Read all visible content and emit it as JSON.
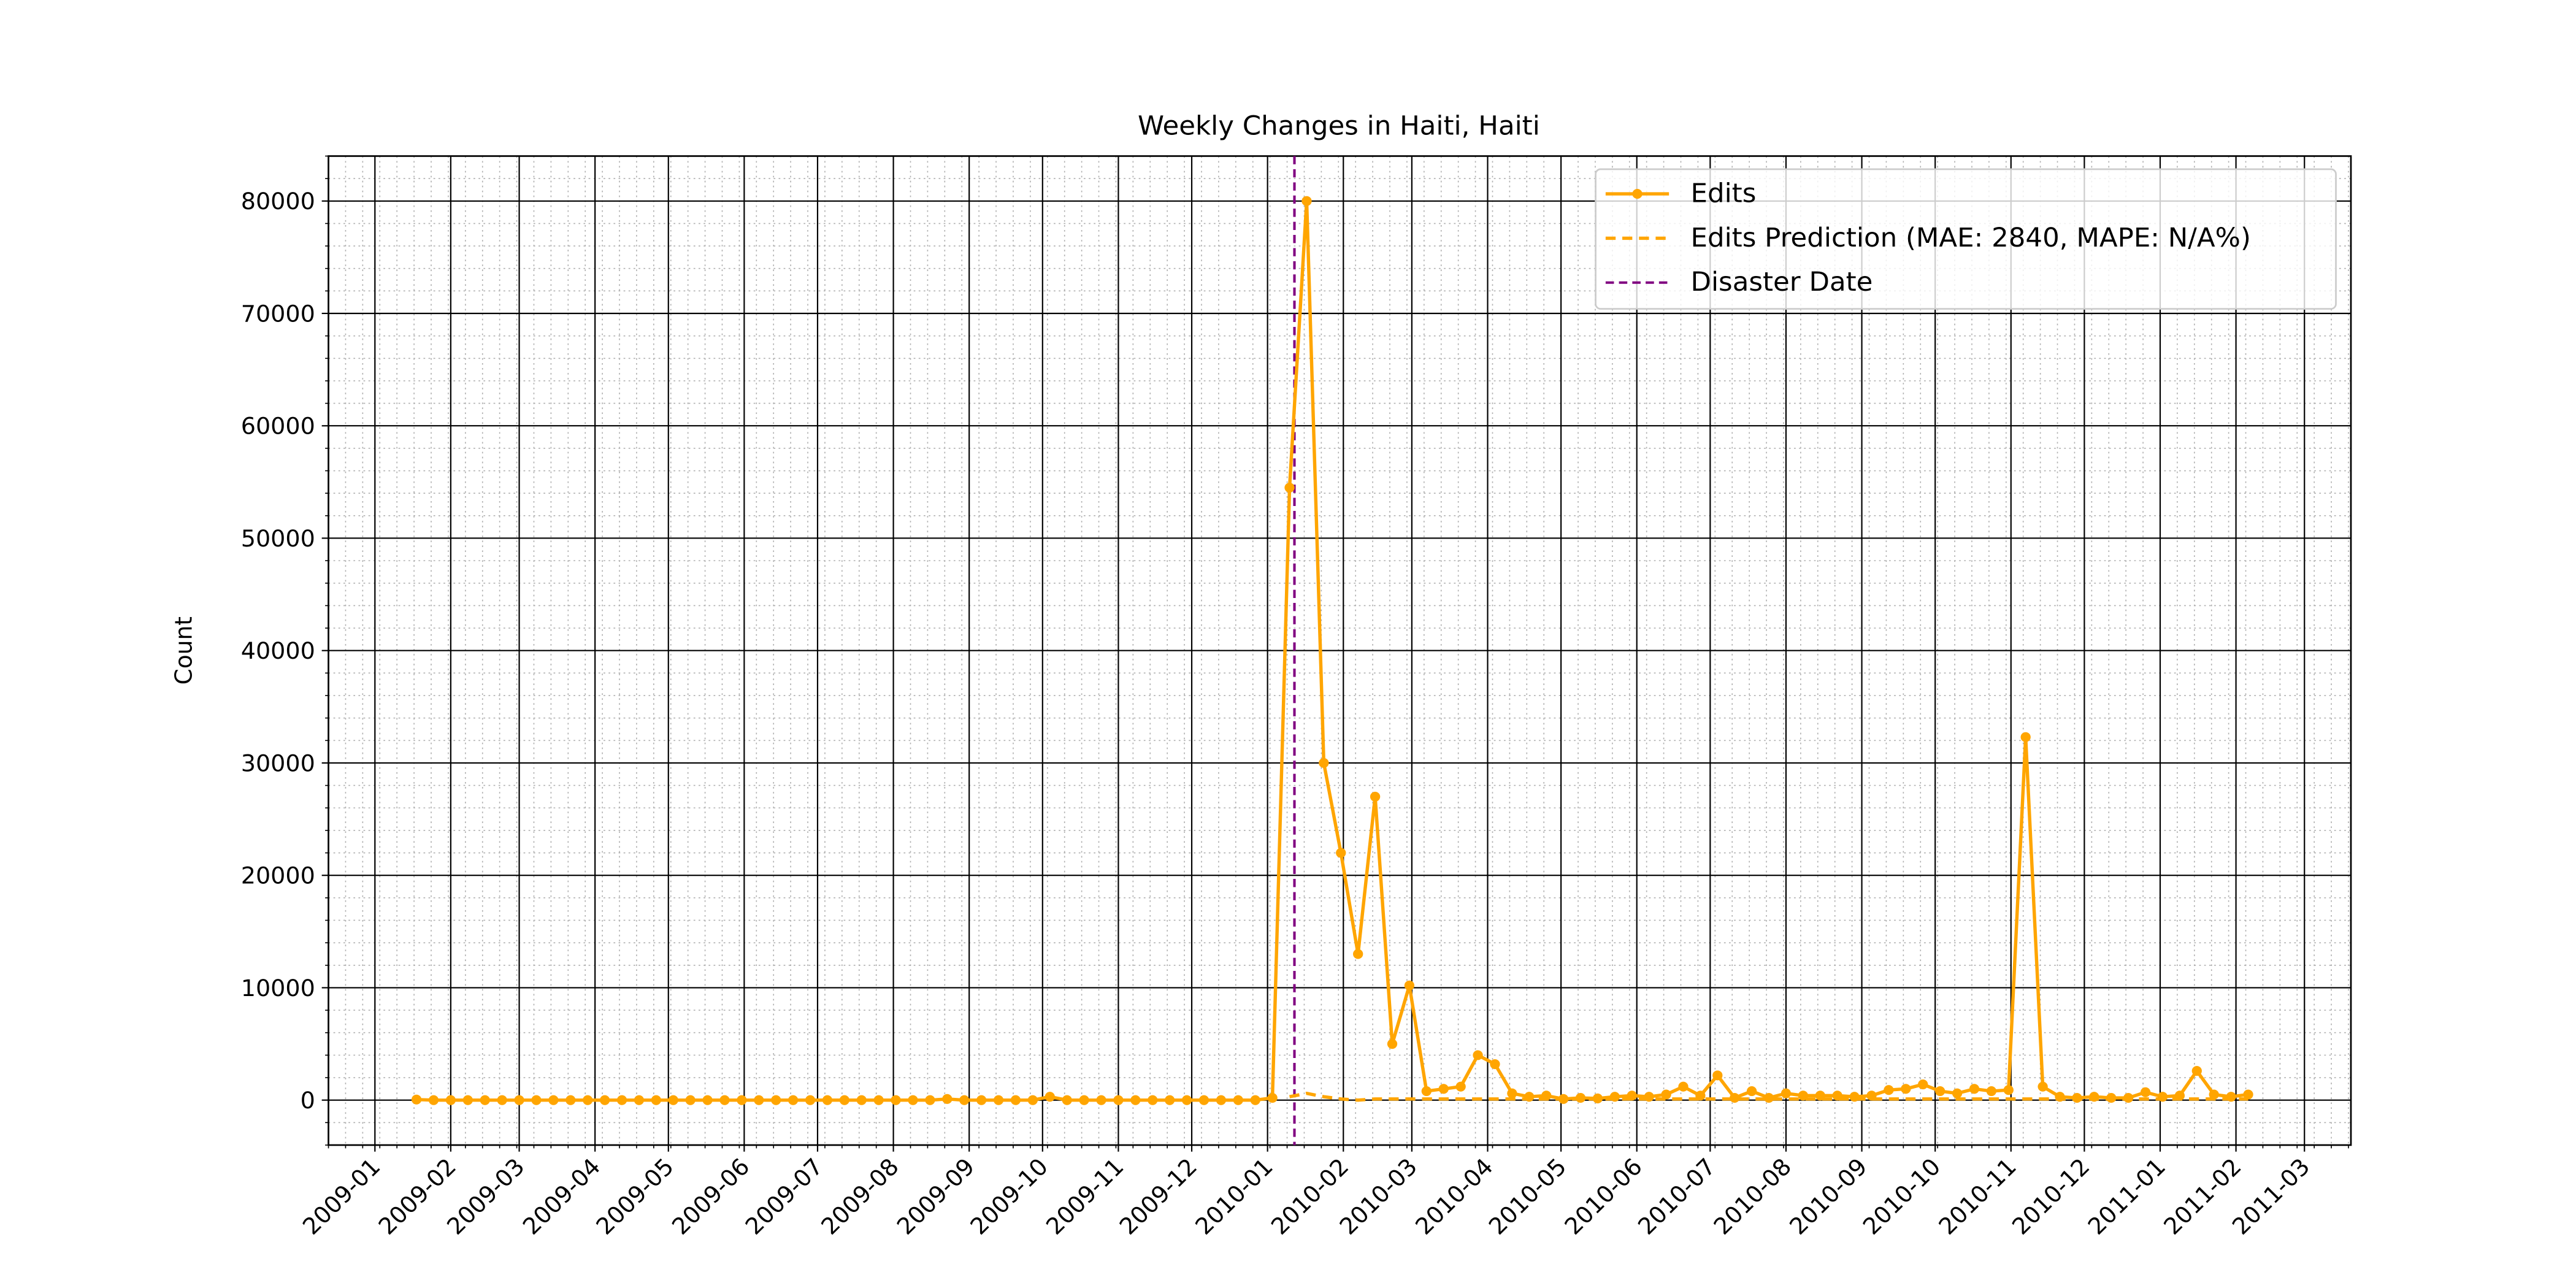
{
  "chart_data": {
    "type": "line",
    "title": "Weekly Changes in Haiti, Haiti",
    "ylabel": "Count",
    "x": [
      "2009-01-18",
      "2009-01-25",
      "2009-02-01",
      "2009-02-08",
      "2009-02-15",
      "2009-02-22",
      "2009-03-01",
      "2009-03-08",
      "2009-03-15",
      "2009-03-22",
      "2009-03-29",
      "2009-04-05",
      "2009-04-12",
      "2009-04-19",
      "2009-04-26",
      "2009-05-03",
      "2009-05-10",
      "2009-05-17",
      "2009-05-24",
      "2009-05-31",
      "2009-06-07",
      "2009-06-14",
      "2009-06-21",
      "2009-06-28",
      "2009-07-05",
      "2009-07-12",
      "2009-07-19",
      "2009-07-26",
      "2009-08-02",
      "2009-08-09",
      "2009-08-16",
      "2009-08-23",
      "2009-08-30",
      "2009-09-06",
      "2009-09-13",
      "2009-09-20",
      "2009-09-27",
      "2009-10-04",
      "2009-10-11",
      "2009-10-18",
      "2009-10-25",
      "2009-11-01",
      "2009-11-08",
      "2009-11-15",
      "2009-11-22",
      "2009-11-29",
      "2009-12-06",
      "2009-12-13",
      "2009-12-20",
      "2009-12-27",
      "2010-01-03",
      "2010-01-10",
      "2010-01-17",
      "2010-01-24",
      "2010-01-31",
      "2010-02-07",
      "2010-02-14",
      "2010-02-21",
      "2010-02-28",
      "2010-03-07",
      "2010-03-14",
      "2010-03-21",
      "2010-03-28",
      "2010-04-04",
      "2010-04-11",
      "2010-04-18",
      "2010-04-25",
      "2010-05-02",
      "2010-05-09",
      "2010-05-16",
      "2010-05-23",
      "2010-05-30",
      "2010-06-06",
      "2010-06-13",
      "2010-06-20",
      "2010-06-27",
      "2010-07-04",
      "2010-07-11",
      "2010-07-18",
      "2010-07-25",
      "2010-08-01",
      "2010-08-08",
      "2010-08-15",
      "2010-08-22",
      "2010-08-29",
      "2010-09-05",
      "2010-09-12",
      "2010-09-19",
      "2010-09-26",
      "2010-10-03",
      "2010-10-10",
      "2010-10-17",
      "2010-10-24",
      "2010-10-31",
      "2010-11-07",
      "2010-11-14",
      "2010-11-21",
      "2010-11-28",
      "2010-12-05",
      "2010-12-12",
      "2010-12-19",
      "2010-12-26",
      "2011-01-02",
      "2011-01-09",
      "2011-01-16",
      "2011-01-23",
      "2011-01-30",
      "2011-02-06"
    ],
    "series": [
      {
        "name": "Edits",
        "color": "#ffa500",
        "style": "solid",
        "markers": true,
        "values": [
          50,
          0,
          0,
          0,
          0,
          0,
          0,
          0,
          0,
          0,
          0,
          0,
          0,
          0,
          0,
          0,
          0,
          0,
          0,
          0,
          0,
          0,
          0,
          0,
          0,
          0,
          0,
          0,
          0,
          0,
          0,
          100,
          0,
          0,
          0,
          0,
          0,
          300,
          0,
          0,
          0,
          0,
          0,
          0,
          0,
          0,
          0,
          0,
          0,
          0,
          200,
          54500,
          80000,
          30000,
          22000,
          13000,
          27000,
          5000,
          10200,
          800,
          1000,
          1200,
          4000,
          3200,
          600,
          300,
          400,
          100,
          200,
          150,
          300,
          400,
          300,
          500,
          1200,
          400,
          2200,
          200,
          800,
          200,
          600,
          400,
          400,
          400,
          300,
          400,
          900,
          1000,
          1400,
          800,
          600,
          1000,
          800,
          900,
          32300,
          1200,
          300,
          200,
          300,
          200,
          200,
          700,
          300,
          400,
          2600,
          500,
          300,
          500
        ]
      },
      {
        "name": "Edits Prediction (MAE: 2840, MAPE: N/A%)",
        "color": "#ffa500",
        "style": "dashed",
        "markers": false,
        "values": [
          null,
          null,
          null,
          null,
          null,
          null,
          null,
          null,
          null,
          null,
          null,
          null,
          null,
          null,
          null,
          null,
          null,
          null,
          null,
          null,
          null,
          null,
          null,
          null,
          null,
          null,
          null,
          null,
          null,
          null,
          null,
          null,
          null,
          null,
          null,
          null,
          null,
          null,
          null,
          null,
          null,
          null,
          null,
          null,
          null,
          null,
          null,
          null,
          null,
          null,
          null,
          300,
          600,
          300,
          100,
          0,
          100,
          100,
          100,
          100,
          100,
          100,
          100,
          100,
          100,
          100,
          100,
          100,
          100,
          100,
          100,
          100,
          100,
          100,
          100,
          100,
          100,
          100,
          100,
          100,
          100,
          100,
          100,
          100,
          100,
          100,
          100,
          100,
          100,
          100,
          100,
          100,
          100,
          100,
          100,
          100,
          100,
          100,
          100,
          100,
          100,
          100,
          100,
          100,
          100,
          100,
          100,
          100
        ]
      }
    ],
    "disaster": {
      "name": "Disaster Date",
      "date": "2010-01-12",
      "color": "#800080"
    },
    "xlim": [
      "2008-12-13",
      "2011-03-20"
    ],
    "xticks": [
      "2009-01",
      "2009-02",
      "2009-03",
      "2009-04",
      "2009-05",
      "2009-06",
      "2009-07",
      "2009-08",
      "2009-09",
      "2009-10",
      "2009-11",
      "2009-12",
      "2010-01",
      "2010-02",
      "2010-03",
      "2010-04",
      "2010-05",
      "2010-06",
      "2010-07",
      "2010-08",
      "2010-09",
      "2010-10",
      "2010-11",
      "2010-12",
      "2011-01",
      "2011-02",
      "2011-03"
    ],
    "ylim": [
      -4000,
      84000
    ],
    "yticks": [
      0,
      10000,
      20000,
      30000,
      40000,
      50000,
      60000,
      70000,
      80000
    ],
    "grid": true,
    "minor_grid": true,
    "legend": "upper right"
  }
}
